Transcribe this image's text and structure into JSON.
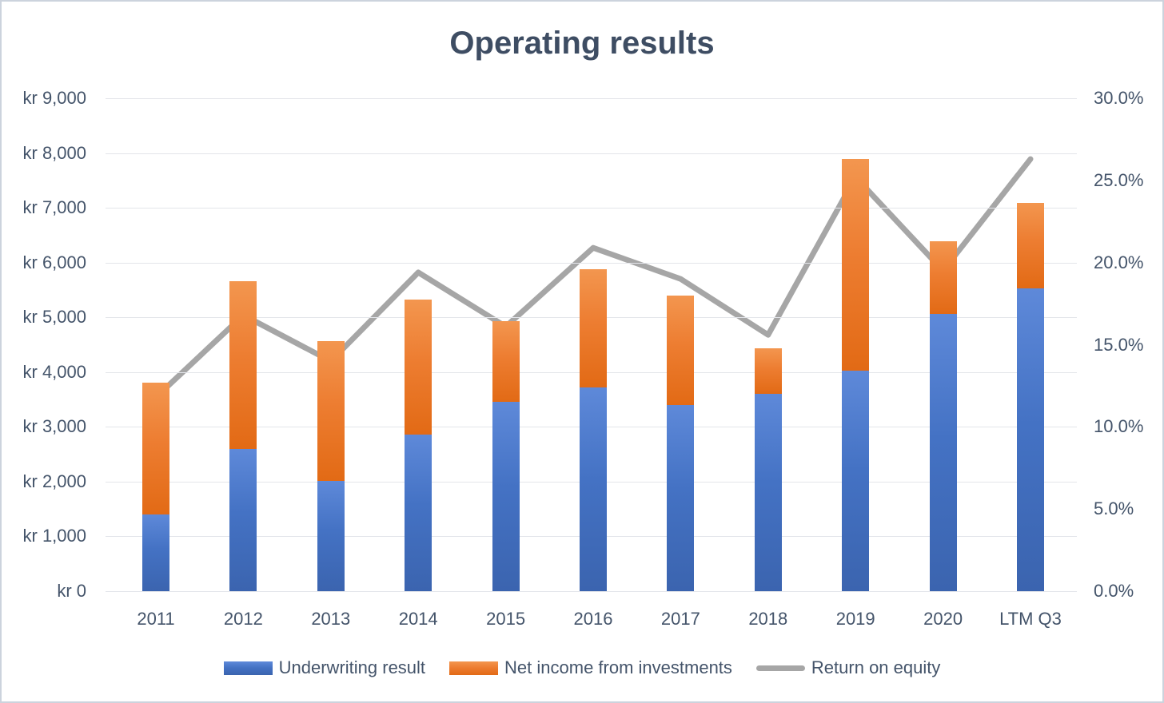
{
  "page": {
    "background": "#ffffff",
    "border_color": "#ccd3dd",
    "text_color": "#44546A",
    "gridline_color": "#e3e5ea"
  },
  "chart_data": {
    "type": "bar",
    "subtype": "stacked-bar-with-line",
    "title": "Operating results",
    "categories": [
      "2011",
      "2012",
      "2013",
      "2014",
      "2015",
      "2016",
      "2017",
      "2018",
      "2019",
      "2020",
      "LTM Q3"
    ],
    "bar_series": [
      {
        "name": "Underwriting result",
        "color": "#4472C4",
        "values": [
          1400,
          2600,
          2010,
          2860,
          3450,
          3720,
          3400,
          3600,
          4030,
          5060,
          5530
        ]
      },
      {
        "name": "Net income from investments",
        "color": "#ED7D31",
        "values": [
          2400,
          3060,
          2550,
          2470,
          1480,
          2160,
          2000,
          830,
          3860,
          1330,
          1560
        ]
      }
    ],
    "line_series": {
      "name": "Return on equity",
      "color": "#A6A6A6",
      "values": [
        11.8,
        16.8,
        14.0,
        19.4,
        16.1,
        20.9,
        19.0,
        15.6,
        25.2,
        19.5,
        26.3
      ]
    },
    "left_axis": {
      "min": 0,
      "max": 9000,
      "step": 1000,
      "ticks": [
        "kr 9,000",
        "kr 8,000",
        "kr 7,000",
        "kr 6,000",
        "kr 5,000",
        "kr 4,000",
        "kr 3,000",
        "kr 2,000",
        "kr 1,000",
        "kr 0"
      ]
    },
    "right_axis": {
      "min": 0,
      "max": 30,
      "step": 5,
      "ticks": [
        "30.0%",
        "25.0%",
        "20.0%",
        "15.0%",
        "10.0%",
        "5.0%",
        "0.0%"
      ]
    },
    "legend_position": "bottom",
    "grid": true
  }
}
